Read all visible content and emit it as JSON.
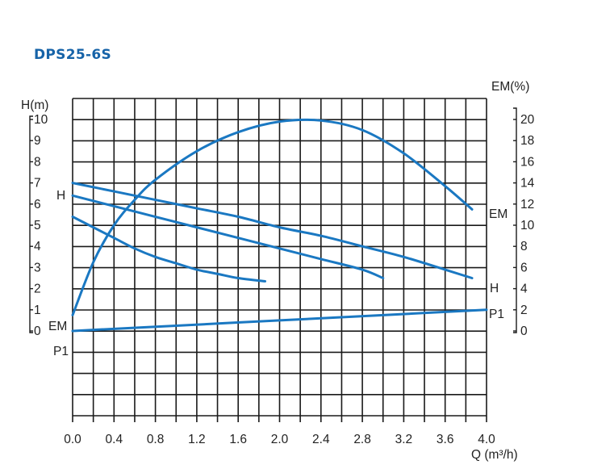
{
  "title": "DPS25-6S",
  "chart_data": {
    "type": "line",
    "title": "DPS25-6S",
    "x": {
      "label": "Q (m³/h)",
      "range": [
        0,
        4.0
      ],
      "ticks": [
        "0.0",
        "0.4",
        "0.8",
        "1.2",
        "1.6",
        "2.0",
        "2.4",
        "2.8",
        "3.2",
        "3.6",
        "4.0"
      ],
      "grid_step": 0.2
    },
    "y_left": {
      "label": "H(m)",
      "range": [
        0,
        10
      ],
      "ticks": [
        "0",
        "1",
        "2",
        "3",
        "4",
        "5",
        "6",
        "7",
        "8",
        "9",
        "10"
      ]
    },
    "y_right": {
      "label": "EM(%)",
      "range": [
        0,
        20
      ],
      "ticks": [
        "0",
        "2",
        "4",
        "6",
        "8",
        "10",
        "12",
        "14",
        "16",
        "18",
        "20"
      ]
    },
    "grid": true,
    "series": [
      {
        "name": "EM",
        "axis": "right",
        "label_left": "EM",
        "label_right": "EM",
        "points": [
          [
            0.0,
            1.5
          ],
          [
            0.2,
            6.5
          ],
          [
            0.4,
            10.0
          ],
          [
            0.6,
            12.4
          ],
          [
            0.8,
            14.3
          ],
          [
            1.2,
            17.0
          ],
          [
            1.6,
            18.8
          ],
          [
            2.0,
            19.8
          ],
          [
            2.4,
            19.9
          ],
          [
            2.8,
            19.0
          ],
          [
            3.2,
            16.8
          ],
          [
            3.6,
            13.7
          ],
          [
            3.86,
            11.5
          ]
        ]
      },
      {
        "name": "H",
        "axis": "left",
        "label_left": "H",
        "label_right": "H",
        "points": [
          [
            0.0,
            7.0
          ],
          [
            0.4,
            6.6
          ],
          [
            0.8,
            6.2
          ],
          [
            1.2,
            5.8
          ],
          [
            1.6,
            5.4
          ],
          [
            2.0,
            4.9
          ],
          [
            2.4,
            4.5
          ],
          [
            2.8,
            4.0
          ],
          [
            3.2,
            3.5
          ],
          [
            3.6,
            2.9
          ],
          [
            3.86,
            2.5
          ]
        ]
      },
      {
        "name": "H",
        "axis": "left",
        "points": [
          [
            0.0,
            6.4
          ],
          [
            0.4,
            5.9
          ],
          [
            0.8,
            5.4
          ],
          [
            1.2,
            4.9
          ],
          [
            1.6,
            4.4
          ],
          [
            2.0,
            3.9
          ],
          [
            2.4,
            3.4
          ],
          [
            2.8,
            2.9
          ],
          [
            3.0,
            2.5
          ]
        ]
      },
      {
        "name": "H",
        "axis": "left",
        "points": [
          [
            0.0,
            5.4
          ],
          [
            0.2,
            4.9
          ],
          [
            0.4,
            4.4
          ],
          [
            0.6,
            3.9
          ],
          [
            0.8,
            3.5
          ],
          [
            1.0,
            3.2
          ],
          [
            1.2,
            2.9
          ],
          [
            1.4,
            2.7
          ],
          [
            1.6,
            2.5
          ],
          [
            1.86,
            2.35
          ]
        ]
      },
      {
        "name": "P1",
        "axis": "left",
        "label_left": "P1",
        "label_right": "P1",
        "points": [
          [
            0.0,
            0.0
          ],
          [
            1.0,
            0.25
          ],
          [
            2.0,
            0.5
          ],
          [
            3.0,
            0.75
          ],
          [
            4.0,
            1.0
          ]
        ]
      }
    ]
  }
}
